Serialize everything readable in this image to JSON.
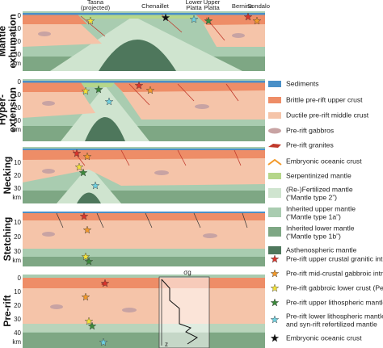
{
  "stages": [
    {
      "label": [
        "Mantle",
        "exhumation"
      ],
      "depth_ticks": [
        "0",
        "10",
        "20",
        "30"
      ],
      "unit": "km"
    },
    {
      "label": [
        "Hyper-",
        "extension"
      ],
      "depth_ticks": [
        "0",
        "10",
        "20",
        "30"
      ],
      "unit": "km"
    },
    {
      "label": [
        "Necking"
      ],
      "depth_ticks": [
        "10",
        "20",
        "30"
      ],
      "unit": "km"
    },
    {
      "label": [
        "Stetching"
      ],
      "depth_ticks": [
        "10",
        "20",
        "30"
      ],
      "unit": "km"
    },
    {
      "label": [
        "Pre-rift"
      ],
      "depth_ticks": [
        "0",
        "10",
        "20",
        "30",
        "40"
      ],
      "unit": "km"
    }
  ],
  "locations": [
    [
      "Tasna",
      "(projected)"
    ],
    [
      "Chenaillet"
    ],
    [
      "Lower",
      "Platta"
    ],
    [
      "Upper",
      "Platta"
    ],
    [
      "Bernina"
    ],
    [
      "Sondalo"
    ]
  ],
  "legend": {
    "units": [
      [
        "Sediments"
      ],
      [
        "Brittle pre-rift upper crust"
      ],
      [
        "Ductile pre-rift middle crust"
      ],
      [
        "Pre-rift gabbros"
      ],
      [
        "Pre-rift granites"
      ],
      [
        "Embryonic oceanic crust"
      ],
      [
        "Serpentinized mantle"
      ],
      [
        "(Re-)Fertilized mantle",
        "(“Mantle type 2”)"
      ],
      [
        "Inherited upper mantle",
        "(“Mantle type 1a”)"
      ],
      [
        "Inherited lower mantle",
        "(“Mantle type 1b”)"
      ],
      [
        "Asthenospheric mantle"
      ]
    ],
    "intrusions": [
      [
        "Pre-rift upper crustal granitic intrusion"
      ],
      [
        "Pre-rift mid-crustal gabbroic intrusion"
      ],
      [
        "Pre-rift gabbroic lower crust (Permian underpl.)"
      ],
      [
        "Pre-rift upper lithospheric mantle (inherited)"
      ],
      [
        "Pre-rift lower lithospheric mantle (inherited)",
        "and syn-rift refertilized mantle"
      ],
      [
        "Embryonic oceanic crust"
      ]
    ]
  },
  "profile": {
    "axis_label": "σg",
    "depth_label": "z"
  }
}
